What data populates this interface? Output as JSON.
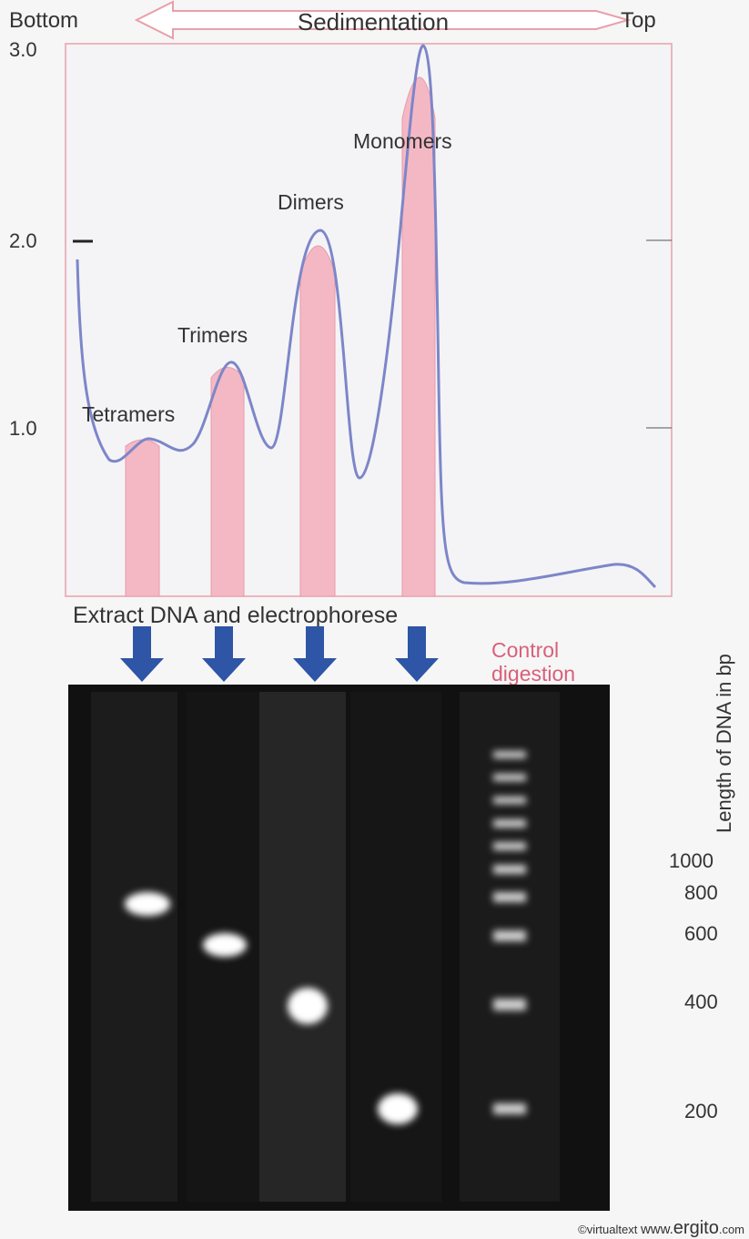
{
  "header": {
    "left": "Bottom",
    "center": "Sedimentation",
    "right": "Top"
  },
  "y_axis": {
    "ticks": [
      "3.0",
      "2.0",
      "1.0"
    ]
  },
  "peaks": [
    "Tetramers",
    "Trimers",
    "Dimers",
    "Monomers"
  ],
  "gel": {
    "caption": "Extract DNA and electrophorese",
    "control": [
      "Control",
      "digestion"
    ],
    "axis_label": "Length of DNA in bp",
    "sizes": [
      "1000",
      "800",
      "600",
      "400",
      "200"
    ]
  },
  "credit": {
    "prefix": "©virtualtext",
    "site": "www.",
    "brand": "ergito",
    "suffix": ".com"
  }
}
